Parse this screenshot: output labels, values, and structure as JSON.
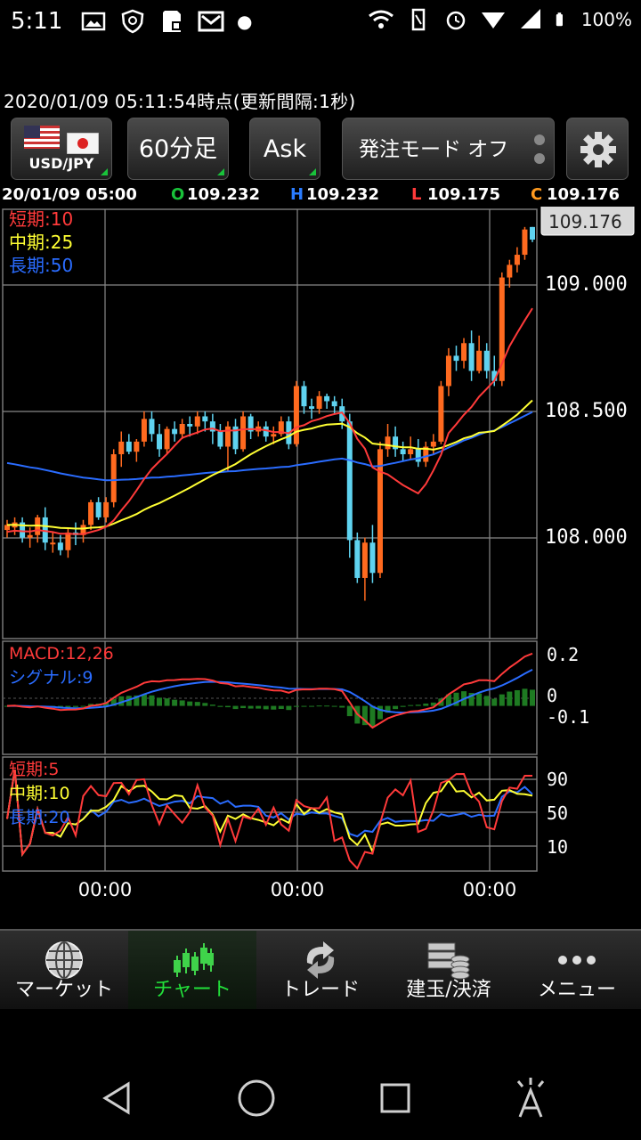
{
  "status": {
    "time": "5:11",
    "battery": "100%"
  },
  "header": {
    "updated": "2020/01/09 05:11:54時点(更新間隔:1秒)"
  },
  "toolbar": {
    "pair": "USD/JPY",
    "timeframe": "60分足",
    "price_type": "Ask",
    "order_mode": "発注モード オフ"
  },
  "ohlc": {
    "date": "20/01/09 05:00",
    "o_label": "O",
    "o_value": "109.232",
    "h_label": "H",
    "h_value": "109.232",
    "l_label": "L",
    "l_value": "109.175",
    "c_label": "C",
    "c_value": "109.176"
  },
  "chart_data": [
    {
      "type": "candlestick",
      "current_price": "109.176",
      "y_ticks": [
        "109.000",
        "108.500",
        "108.000"
      ],
      "ylim": [
        107.6,
        109.3
      ],
      "legend": [
        {
          "name": "短期:10",
          "color": "#ff3a3a"
        },
        {
          "name": "中期:25",
          "color": "#ffff33"
        },
        {
          "name": "長期:50",
          "color": "#2a6cff"
        }
      ],
      "x_ticks": [
        "00:00",
        "00:00",
        "00:00"
      ],
      "candles": [
        [
          108.03,
          108.07,
          108.0,
          108.05
        ],
        [
          108.04,
          108.08,
          108.01,
          108.06
        ],
        [
          108.06,
          108.08,
          107.98,
          108.0
        ],
        [
          108.0,
          108.04,
          107.96,
          108.01
        ],
        [
          108.01,
          108.09,
          107.98,
          108.08
        ],
        [
          108.08,
          108.12,
          107.95,
          107.98
        ],
        [
          107.98,
          108.02,
          107.94,
          107.98
        ],
        [
          107.98,
          108.01,
          107.93,
          107.95
        ],
        [
          107.95,
          108.04,
          107.92,
          108.02
        ],
        [
          108.02,
          108.06,
          107.97,
          108.01
        ],
        [
          108.01,
          108.07,
          107.98,
          108.05
        ],
        [
          108.05,
          108.15,
          108.03,
          108.14
        ],
        [
          108.14,
          108.16,
          108.07,
          108.08
        ],
        [
          108.08,
          108.16,
          108.06,
          108.14
        ],
        [
          108.14,
          108.35,
          108.12,
          108.33
        ],
        [
          108.33,
          108.42,
          108.28,
          108.38
        ],
        [
          108.38,
          108.41,
          108.33,
          108.34
        ],
        [
          108.34,
          108.39,
          108.3,
          108.38
        ],
        [
          108.38,
          108.5,
          108.36,
          108.47
        ],
        [
          108.47,
          108.5,
          108.38,
          108.41
        ],
        [
          108.41,
          108.45,
          108.32,
          108.35
        ],
        [
          108.35,
          108.44,
          108.33,
          108.43
        ],
        [
          108.43,
          108.46,
          108.38,
          108.41
        ],
        [
          108.41,
          108.47,
          108.39,
          108.45
        ],
        [
          108.45,
          108.48,
          108.4,
          108.44
        ],
        [
          108.44,
          108.5,
          108.41,
          108.48
        ],
        [
          108.48,
          108.5,
          108.42,
          108.46
        ],
        [
          108.46,
          108.49,
          108.37,
          108.42
        ],
        [
          108.42,
          108.45,
          108.35,
          108.36
        ],
        [
          108.36,
          108.46,
          108.26,
          108.44
        ],
        [
          108.44,
          108.47,
          108.33,
          108.35
        ],
        [
          108.35,
          108.5,
          108.34,
          108.48
        ],
        [
          108.48,
          108.49,
          108.39,
          108.42
        ],
        [
          108.42,
          108.46,
          108.4,
          108.44
        ],
        [
          108.44,
          108.46,
          108.38,
          108.4
        ],
        [
          108.4,
          108.44,
          108.37,
          108.41
        ],
        [
          108.41,
          108.48,
          108.4,
          108.46
        ],
        [
          108.46,
          108.48,
          108.35,
          108.37
        ],
        [
          108.37,
          108.62,
          108.36,
          108.6
        ],
        [
          108.6,
          108.62,
          108.49,
          108.52
        ],
        [
          108.52,
          108.55,
          108.47,
          108.51
        ],
        [
          108.51,
          108.58,
          108.49,
          108.56
        ],
        [
          108.56,
          108.57,
          108.51,
          108.54
        ],
        [
          108.54,
          108.56,
          108.49,
          108.52
        ],
        [
          108.52,
          108.55,
          108.43,
          108.46
        ],
        [
          108.46,
          108.49,
          107.92,
          107.99
        ],
        [
          107.99,
          108.02,
          107.82,
          107.84
        ],
        [
          107.84,
          108.0,
          107.75,
          107.98
        ],
        [
          107.98,
          108.05,
          107.82,
          107.86
        ],
        [
          107.86,
          108.38,
          107.84,
          108.35
        ],
        [
          108.35,
          108.45,
          108.32,
          108.4
        ],
        [
          108.4,
          108.44,
          108.32,
          108.35
        ],
        [
          108.35,
          108.38,
          108.3,
          108.33
        ],
        [
          108.33,
          108.4,
          108.31,
          108.35
        ],
        [
          108.35,
          108.39,
          108.28,
          108.3
        ],
        [
          108.3,
          108.38,
          108.28,
          108.36
        ],
        [
          108.36,
          108.41,
          108.33,
          108.38
        ],
        [
          108.38,
          108.62,
          108.37,
          108.6
        ],
        [
          108.6,
          108.75,
          108.56,
          108.72
        ],
        [
          108.72,
          108.76,
          108.66,
          108.7
        ],
        [
          108.7,
          108.79,
          108.67,
          108.77
        ],
        [
          108.77,
          108.82,
          108.62,
          108.66
        ],
        [
          108.66,
          108.8,
          108.65,
          108.74
        ],
        [
          108.74,
          108.77,
          108.63,
          108.66
        ],
        [
          108.66,
          108.72,
          108.6,
          108.62
        ],
        [
          108.62,
          109.05,
          108.6,
          109.03
        ],
        [
          109.03,
          109.1,
          108.99,
          109.08
        ],
        [
          109.08,
          109.15,
          109.05,
          109.12
        ],
        [
          109.12,
          109.23,
          109.1,
          109.22
        ],
        [
          109.23,
          109.23,
          109.17,
          109.18
        ]
      ]
    },
    {
      "type": "line",
      "name_pair": [
        "MACD:12,26",
        "シグナル:9"
      ],
      "y_ticks": [
        "0.2",
        "0",
        "-0.1"
      ],
      "ylim": [
        -0.18,
        0.24
      ]
    },
    {
      "type": "line",
      "legend": [
        {
          "name": "短期:5",
          "color": "#ff3a3a"
        },
        {
          "name": "中期:10",
          "color": "#ffff33"
        },
        {
          "name": "長期:20",
          "color": "#2a6cff"
        }
      ],
      "y_ticks": [
        "90",
        "50",
        "10"
      ],
      "ylim": [
        0,
        110
      ]
    }
  ],
  "nav": {
    "items": [
      {
        "label": "マーケット"
      },
      {
        "label": "チャート"
      },
      {
        "label": "トレード"
      },
      {
        "label": "建玉/決済"
      },
      {
        "label": "メニュー"
      }
    ]
  },
  "colors": {
    "up": "#ff6a1f",
    "down": "#5fd3f0",
    "ma_short": "#ff3a3a",
    "ma_mid": "#ffff33",
    "ma_long": "#2a6cff",
    "accent": "#19c23a"
  }
}
